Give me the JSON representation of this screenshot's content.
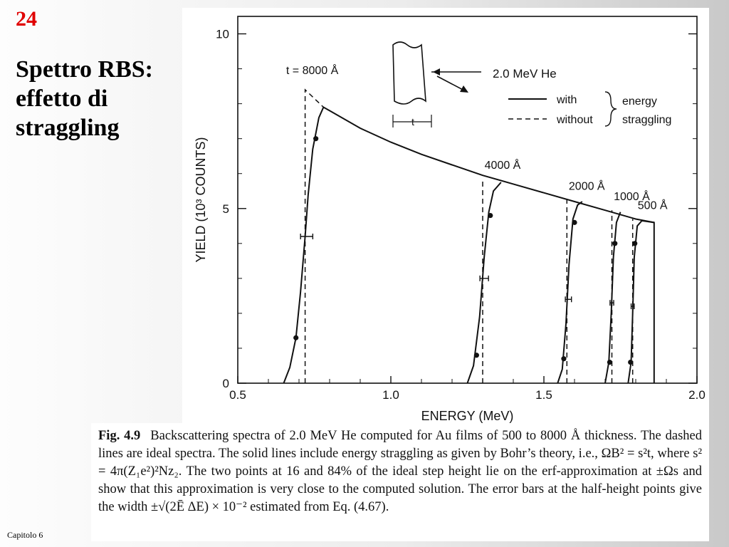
{
  "slide": {
    "number": "24",
    "title_lines": [
      "Spettro RBS:",
      "effetto di",
      "straggling"
    ],
    "footer": "Capitolo  6"
  },
  "colors": {
    "slide_number": "#e00000",
    "ink": "#111111",
    "background": "#ffffff"
  },
  "caption": {
    "label": "Fig. 4.9",
    "text": "Backscattering spectra of 2.0 MeV He computed for Au films of 500 to 8000 Å thickness. The dashed lines are ideal spectra. The solid lines include energy straggling as given by Bohr’s theory, i.e., ΩB² = s²t, where s² = 4π(Z₁e²)²Nz₂. The two points at 16 and 84% of the ideal step height lie on the erf-approximation at ±Ωs and show that this approximation is very close to the computed solution. The error bars at the half-height points give the width ±√(2Ē ΔE) × 10⁻² estimated from Eq. (4.67)."
  },
  "chart_data": {
    "type": "line",
    "title": "",
    "xlabel": "ENERGY   (MeV)",
    "ylabel": "YIELD   (10³ COUNTS)",
    "xlim": [
      0.5,
      2.0
    ],
    "ylim": [
      0,
      10.5
    ],
    "xticks": [
      0.5,
      1.0,
      1.5,
      2.0
    ],
    "xtick_labels": [
      "0.5",
      "1.0",
      "1.5",
      "2.0"
    ],
    "yticks": [
      0,
      5,
      10
    ],
    "ytick_labels": [
      "0",
      "5",
      "10"
    ],
    "legend": {
      "beam": "2.0 MeV    He",
      "with": "with",
      "without": "without",
      "bracket_top": "energy",
      "bracket_bottom": "straggling",
      "thickness_label": "t",
      "position": "top-right"
    },
    "series": [
      {
        "name": "8000 Å",
        "label": "t = 8000 Å",
        "edge_energy": 0.72,
        "ideal_height": 8.4,
        "straggled": [
          [
            0.65,
            0.0
          ],
          [
            0.67,
            0.45
          ],
          [
            0.69,
            1.3
          ],
          [
            0.705,
            2.6
          ],
          [
            0.72,
            4.2
          ],
          [
            0.73,
            5.4
          ],
          [
            0.745,
            6.7
          ],
          [
            0.765,
            7.6
          ],
          [
            0.78,
            7.9
          ],
          [
            0.8,
            7.8
          ],
          [
            0.9,
            7.3
          ],
          [
            1.0,
            6.9
          ],
          [
            1.1,
            6.55
          ],
          [
            1.2,
            6.25
          ],
          [
            1.3,
            5.95
          ],
          [
            1.4,
            5.7
          ],
          [
            1.5,
            5.45
          ],
          [
            1.6,
            5.2
          ],
          [
            1.7,
            4.95
          ],
          [
            1.8,
            4.7
          ],
          [
            1.86,
            4.6
          ]
        ],
        "ideal": [
          [
            0.72,
            0.0
          ],
          [
            0.72,
            8.4
          ],
          [
            0.78,
            7.9
          ]
        ],
        "points": [
          [
            0.69,
            1.3
          ],
          [
            0.755,
            7.0
          ]
        ],
        "error_bar": {
          "x": 0.725,
          "y": 4.2,
          "halfwidth": 0.02
        }
      },
      {
        "name": "4000 Å",
        "label": "4000 Å",
        "edge_energy": 1.3,
        "ideal_height": 5.85,
        "straggled": [
          [
            1.25,
            0.0
          ],
          [
            1.27,
            0.5
          ],
          [
            1.29,
            1.9
          ],
          [
            1.305,
            3.6
          ],
          [
            1.32,
            4.9
          ],
          [
            1.335,
            5.5
          ],
          [
            1.36,
            5.75
          ]
        ],
        "ideal": [
          [
            1.3,
            0.0
          ],
          [
            1.3,
            5.85
          ]
        ],
        "points": [
          [
            1.28,
            0.8
          ],
          [
            1.325,
            4.8
          ]
        ],
        "error_bar": {
          "x": 1.305,
          "y": 3.0,
          "halfwidth": 0.014
        }
      },
      {
        "name": "2000 Å",
        "label": "2000 Å",
        "edge_energy": 1.575,
        "ideal_height": 5.25,
        "straggled": [
          [
            1.545,
            0.0
          ],
          [
            1.56,
            0.4
          ],
          [
            1.572,
            1.7
          ],
          [
            1.582,
            3.4
          ],
          [
            1.595,
            4.7
          ],
          [
            1.61,
            5.1
          ],
          [
            1.625,
            5.2
          ]
        ],
        "ideal": [
          [
            1.575,
            0.0
          ],
          [
            1.575,
            5.25
          ]
        ],
        "points": [
          [
            1.565,
            0.7
          ],
          [
            1.6,
            4.6
          ]
        ],
        "error_bar": {
          "x": 1.58,
          "y": 2.4,
          "halfwidth": 0.01
        }
      },
      {
        "name": "1000 Å",
        "label": "1000 Å",
        "edge_energy": 1.722,
        "ideal_height": 4.95,
        "straggled": [
          [
            1.7,
            0.0
          ],
          [
            1.712,
            0.6
          ],
          [
            1.72,
            2.0
          ],
          [
            1.727,
            3.6
          ],
          [
            1.737,
            4.6
          ],
          [
            1.75,
            4.9
          ]
        ],
        "ideal": [
          [
            1.722,
            0.0
          ],
          [
            1.722,
            4.95
          ]
        ],
        "points": [
          [
            1.715,
            0.6
          ],
          [
            1.732,
            4.0
          ]
        ],
        "error_bar": {
          "x": 1.722,
          "y": 2.3,
          "halfwidth": 0.006
        }
      },
      {
        "name": "500 Å",
        "label": "500 Å",
        "edge_energy": 1.79,
        "ideal_height": 4.7,
        "straggled": [
          [
            1.775,
            0.0
          ],
          [
            1.785,
            0.6
          ],
          [
            1.79,
            2.0
          ],
          [
            1.795,
            3.6
          ],
          [
            1.805,
            4.5
          ],
          [
            1.82,
            4.65
          ],
          [
            1.86,
            4.6
          ],
          [
            1.86,
            0.0
          ]
        ],
        "ideal": [
          [
            1.79,
            0.0
          ],
          [
            1.79,
            4.7
          ]
        ],
        "points": [
          [
            1.783,
            0.6
          ],
          [
            1.797,
            4.0
          ]
        ],
        "error_bar": {
          "x": 1.79,
          "y": 2.2,
          "halfwidth": 0.005
        }
      }
    ],
    "grid": false
  }
}
